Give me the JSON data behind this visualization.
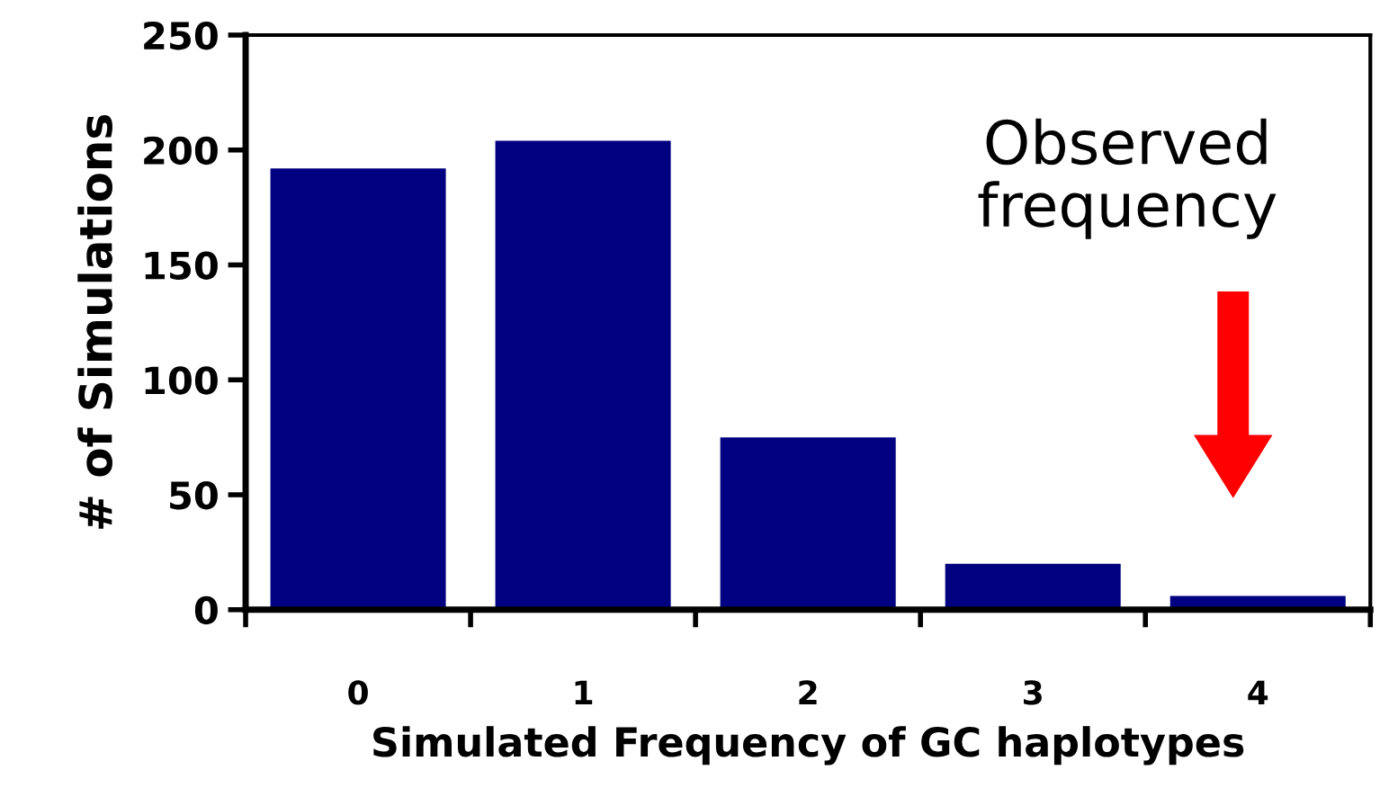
{
  "chart_data": {
    "type": "bar",
    "xlabel": "Simulated Frequency of GC haplotypes",
    "ylabel": "# of Simulations",
    "categories": [
      "0",
      "1",
      "2",
      "3",
      "4"
    ],
    "values": [
      192,
      204,
      75,
      20,
      6
    ],
    "color": "#000080",
    "ylim": [
      0,
      250
    ],
    "yticks": [
      0,
      50,
      100,
      150,
      200,
      250
    ],
    "grid": false,
    "legend": false,
    "annotations": [
      "Observed\nfrequency"
    ]
  }
}
